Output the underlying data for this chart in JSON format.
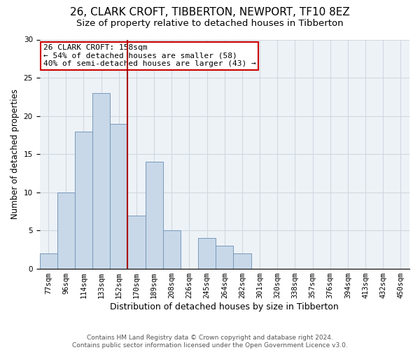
{
  "title1": "26, CLARK CROFT, TIBBERTON, NEWPORT, TF10 8EZ",
  "title2": "Size of property relative to detached houses in Tibberton",
  "xlabel": "Distribution of detached houses by size in Tibberton",
  "ylabel": "Number of detached properties",
  "categories": [
    "77sqm",
    "96sqm",
    "114sqm",
    "133sqm",
    "152sqm",
    "170sqm",
    "189sqm",
    "208sqm",
    "226sqm",
    "245sqm",
    "264sqm",
    "282sqm",
    "301sqm",
    "320sqm",
    "338sqm",
    "357sqm",
    "376sqm",
    "394sqm",
    "413sqm",
    "432sqm",
    "450sqm"
  ],
  "values": [
    2,
    10,
    18,
    23,
    19,
    7,
    14,
    5,
    0,
    4,
    3,
    2,
    0,
    0,
    0,
    0,
    0,
    0,
    0,
    0,
    0
  ],
  "bar_color": "#c8d8e8",
  "bar_edge_color": "#7799bb",
  "property_line_color": "#aa0000",
  "annotation_box_text": "26 CLARK CROFT: 158sqm\n← 54% of detached houses are smaller (58)\n40% of semi-detached houses are larger (43) →",
  "annotation_box_color": "#cc0000",
  "ylim": [
    0,
    30
  ],
  "yticks": [
    0,
    5,
    10,
    15,
    20,
    25,
    30
  ],
  "grid_color": "#d0d8e0",
  "background_color": "#edf2f7",
  "footer_line1": "Contains HM Land Registry data © Crown copyright and database right 2024.",
  "footer_line2": "Contains public sector information licensed under the Open Government Licence v3.0.",
  "title1_fontsize": 11,
  "title2_fontsize": 9.5,
  "xlabel_fontsize": 9,
  "ylabel_fontsize": 8.5,
  "tick_fontsize": 7.5,
  "footer_fontsize": 6.5,
  "annotation_fontsize": 8
}
